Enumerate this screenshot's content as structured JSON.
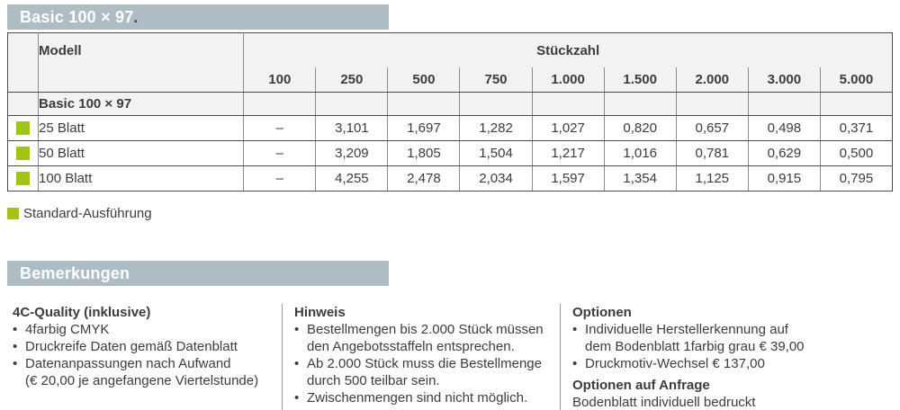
{
  "title": {
    "text": "Basic 100 × 97",
    "suffix": "."
  },
  "table": {
    "model_header": "Modell",
    "quantity_header": "Stückzahl",
    "quantities": [
      "100",
      "250",
      "500",
      "750",
      "1.000",
      "1.500",
      "2.000",
      "3.000",
      "5.000"
    ],
    "group_label": "Basic 100 × 97",
    "rows": [
      {
        "label": "25 Blatt",
        "standard": true,
        "values": [
          "–",
          "3,101",
          "1,697",
          "1,282",
          "1,027",
          "0,820",
          "0,657",
          "0,498",
          "0,371"
        ]
      },
      {
        "label": "50 Blatt",
        "standard": true,
        "values": [
          "–",
          "3,209",
          "1,805",
          "1,504",
          "1,217",
          "1,016",
          "0,781",
          "0,629",
          "0,500"
        ]
      },
      {
        "label": "100 Blatt",
        "standard": true,
        "values": [
          "–",
          "4,255",
          "2,478",
          "2,034",
          "1,597",
          "1,354",
          "1,125",
          "0,915",
          "0,795"
        ]
      }
    ]
  },
  "legend": {
    "label": "Standard-Ausführung"
  },
  "remarks": {
    "title": "Bemerkungen",
    "columns": [
      {
        "sections": [
          {
            "heading": "4C-Quality (inklusive)",
            "bullets": [
              "4farbig CMYK",
              "Druckreife Daten gemäß Datenblatt",
              "Datenanpassungen nach Aufwand\n(€ 20,00 je angefangene Viertelstunde)"
            ]
          }
        ]
      },
      {
        "sections": [
          {
            "heading": "Hinweis",
            "bullets": [
              "Bestellmengen bis 2.000 Stück müssen\nden Angebotsstaffeln entsprechen.",
              "Ab 2.000 Stück muss die Bestellmenge\ndurch 500 teilbar sein.",
              "Zwischenmengen sind nicht möglich."
            ]
          }
        ]
      },
      {
        "sections": [
          {
            "heading": "Optionen",
            "bullets": [
              "Individuelle Herstellerkennung auf\ndem Bodenblatt 1farbig grau € 39,00",
              "Druckmotiv-Wechsel € 137,00"
            ]
          },
          {
            "heading": "Optionen auf Anfrage",
            "text": "Bodenblatt individuell bedruckt"
          }
        ]
      }
    ]
  },
  "colors": {
    "bar_background": "#aebcc4",
    "header_background": "#f2f2f2",
    "standard_green": "#a1c517",
    "border_dark": "#4a4a4a",
    "border_light": "#8c8c8c",
    "text": "#3c3c3c"
  }
}
